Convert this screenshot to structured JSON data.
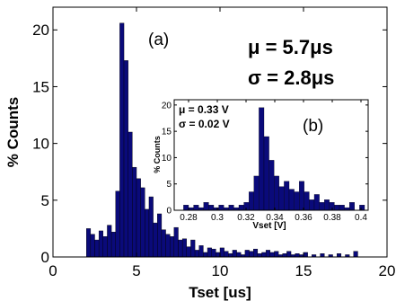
{
  "chart_data": [
    {
      "type": "bar",
      "panel_label": "(a)",
      "xlabel": "Tset [us]",
      "ylabel": "% Counts",
      "xlim": [
        0,
        20
      ],
      "ylim": [
        0,
        22
      ],
      "xticks": [
        0,
        5,
        10,
        15,
        20
      ],
      "yticks": [
        0,
        5,
        10,
        15,
        20
      ],
      "annotations": [
        "μ = 5.7μs",
        "σ = 2.8μs"
      ],
      "bin_width": 0.25,
      "bars": [
        {
          "x": 2.0,
          "y": 2.5
        },
        {
          "x": 2.25,
          "y": 2.0
        },
        {
          "x": 2.5,
          "y": 1.5
        },
        {
          "x": 2.75,
          "y": 2.3
        },
        {
          "x": 3.0,
          "y": 1.8
        },
        {
          "x": 3.25,
          "y": 2.8
        },
        {
          "x": 3.5,
          "y": 2.2
        },
        {
          "x": 3.75,
          "y": 5.8
        },
        {
          "x": 4.0,
          "y": 20.6
        },
        {
          "x": 4.25,
          "y": 17.3
        },
        {
          "x": 4.5,
          "y": 11.0
        },
        {
          "x": 4.75,
          "y": 7.9
        },
        {
          "x": 5.0,
          "y": 6.9
        },
        {
          "x": 5.25,
          "y": 6.1
        },
        {
          "x": 5.5,
          "y": 4.2
        },
        {
          "x": 5.75,
          "y": 5.3
        },
        {
          "x": 6.0,
          "y": 3.0
        },
        {
          "x": 6.25,
          "y": 3.8
        },
        {
          "x": 6.5,
          "y": 2.4
        },
        {
          "x": 6.75,
          "y": 2.0
        },
        {
          "x": 7.0,
          "y": 1.8
        },
        {
          "x": 7.25,
          "y": 2.6
        },
        {
          "x": 7.5,
          "y": 1.5
        },
        {
          "x": 7.75,
          "y": 1.6
        },
        {
          "x": 8.0,
          "y": 0.9
        },
        {
          "x": 8.25,
          "y": 1.5
        },
        {
          "x": 8.5,
          "y": 0.6
        },
        {
          "x": 8.75,
          "y": 1.0
        },
        {
          "x": 9.0,
          "y": 0.4
        },
        {
          "x": 9.25,
          "y": 0.8
        },
        {
          "x": 9.5,
          "y": 0.7
        },
        {
          "x": 9.75,
          "y": 0.4
        },
        {
          "x": 10.0,
          "y": 0.8
        },
        {
          "x": 10.25,
          "y": 0.5
        },
        {
          "x": 10.5,
          "y": 0.3
        },
        {
          "x": 10.75,
          "y": 0.6
        },
        {
          "x": 11.0,
          "y": 0.4
        },
        {
          "x": 11.25,
          "y": 0.2
        },
        {
          "x": 11.5,
          "y": 0.6
        },
        {
          "x": 11.75,
          "y": 0.5
        },
        {
          "x": 12.0,
          "y": 0.7
        },
        {
          "x": 12.25,
          "y": 0.3
        },
        {
          "x": 12.5,
          "y": 0.4
        },
        {
          "x": 12.75,
          "y": 0.6
        },
        {
          "x": 13.0,
          "y": 0.4
        },
        {
          "x": 13.25,
          "y": 0.5
        },
        {
          "x": 13.5,
          "y": 0.2
        },
        {
          "x": 13.75,
          "y": 0.3
        },
        {
          "x": 14.0,
          "y": 0.5
        },
        {
          "x": 14.25,
          "y": 0.2
        },
        {
          "x": 14.5,
          "y": 0.3
        },
        {
          "x": 14.75,
          "y": 0.2
        },
        {
          "x": 15.0,
          "y": 0.4
        },
        {
          "x": 15.5,
          "y": 0.2
        },
        {
          "x": 16.0,
          "y": 0.3
        },
        {
          "x": 16.5,
          "y": 0.2
        },
        {
          "x": 17.0,
          "y": 0.3
        },
        {
          "x": 17.5,
          "y": 0.2
        },
        {
          "x": 18.0,
          "y": 0.5
        }
      ],
      "bar_color": "#0a0a7a"
    },
    {
      "type": "bar",
      "panel_label": "(b)",
      "xlabel": "Vset [V]",
      "ylabel": "% Counts",
      "xlim": [
        0.27,
        0.405
      ],
      "ylim": [
        0,
        21
      ],
      "xticks": [
        0.28,
        0.3,
        0.32,
        0.34,
        0.36,
        0.38,
        0.4
      ],
      "xtick_labels": [
        "0.28",
        "0.3",
        "0.32",
        "0.34",
        "0.36",
        "0.38",
        "0.4"
      ],
      "yticks": [
        0,
        5,
        10,
        15,
        20
      ],
      "annotations": [
        "μ = 0.33 V",
        "σ = 0.02 V"
      ],
      "bin_width": 0.0035,
      "bars": [
        {
          "x": 0.2765,
          "y": 1.0
        },
        {
          "x": 0.28,
          "y": 0.5
        },
        {
          "x": 0.2835,
          "y": 1.0
        },
        {
          "x": 0.287,
          "y": 0.5
        },
        {
          "x": 0.2905,
          "y": 1.5
        },
        {
          "x": 0.294,
          "y": 1.0
        },
        {
          "x": 0.2975,
          "y": 0.5
        },
        {
          "x": 0.301,
          "y": 1.0
        },
        {
          "x": 0.3045,
          "y": 0.5
        },
        {
          "x": 0.308,
          "y": 1.0
        },
        {
          "x": 0.3115,
          "y": 0.5
        },
        {
          "x": 0.315,
          "y": 1.0
        },
        {
          "x": 0.3185,
          "y": 1.5
        },
        {
          "x": 0.322,
          "y": 3.5
        },
        {
          "x": 0.3255,
          "y": 6.5
        },
        {
          "x": 0.329,
          "y": 19.5
        },
        {
          "x": 0.3325,
          "y": 14.0
        },
        {
          "x": 0.336,
          "y": 9.5
        },
        {
          "x": 0.3395,
          "y": 6.5
        },
        {
          "x": 0.343,
          "y": 4.5
        },
        {
          "x": 0.3465,
          "y": 5.5
        },
        {
          "x": 0.35,
          "y": 4.0
        },
        {
          "x": 0.3535,
          "y": 3.5
        },
        {
          "x": 0.357,
          "y": 5.5
        },
        {
          "x": 0.3605,
          "y": 3.5
        },
        {
          "x": 0.364,
          "y": 2.0
        },
        {
          "x": 0.3675,
          "y": 3.0
        },
        {
          "x": 0.371,
          "y": 1.5
        },
        {
          "x": 0.3745,
          "y": 2.0
        },
        {
          "x": 0.378,
          "y": 1.5
        },
        {
          "x": 0.3815,
          "y": 1.0
        },
        {
          "x": 0.385,
          "y": 1.0
        },
        {
          "x": 0.3885,
          "y": 0.5
        },
        {
          "x": 0.392,
          "y": 1.5
        },
        {
          "x": 0.399,
          "y": 1.0
        }
      ],
      "bar_color": "#0a0a7a"
    }
  ]
}
